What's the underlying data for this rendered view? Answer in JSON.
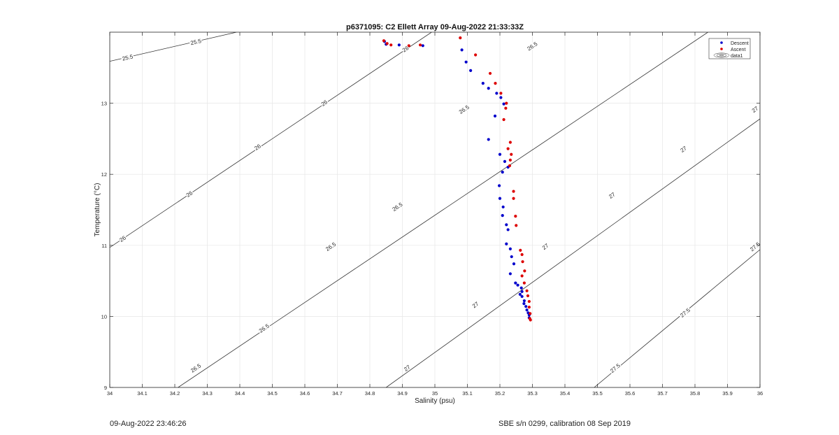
{
  "chart_data": {
    "type": "scatter",
    "title": "p6371095: C2 Ellett Array 09-Aug-2022 21:33:33Z",
    "xlabel": "Salinity (psu)",
    "ylabel": "Temperature (°C)",
    "xlim": [
      34,
      36
    ],
    "ylim": [
      9,
      14
    ],
    "xticks": [
      "34",
      "34.1",
      "34.2",
      "34.3",
      "34.4",
      "34.5",
      "34.6",
      "34.7",
      "34.8",
      "34.9",
      "35",
      "35.1",
      "35.2",
      "35.3",
      "35.4",
      "35.5",
      "35.6",
      "35.7",
      "35.8",
      "35.9",
      "36"
    ],
    "yticks": [
      "9",
      "10",
      "11",
      "12",
      "13"
    ],
    "grid": true,
    "legend_position": "top-right",
    "legend": [
      "Descent",
      "Ascent",
      "data1"
    ],
    "series": [
      {
        "name": "Descent",
        "color": "#0000cc",
        "points": [
          [
            34.845,
            13.87
          ],
          [
            34.85,
            13.83
          ],
          [
            34.89,
            13.82
          ],
          [
            34.963,
            13.81
          ],
          [
            35.083,
            13.75
          ],
          [
            35.096,
            13.58
          ],
          [
            35.11,
            13.46
          ],
          [
            35.148,
            13.28
          ],
          [
            35.165,
            13.21
          ],
          [
            35.19,
            13.14
          ],
          [
            35.203,
            13.08
          ],
          [
            35.212,
            12.99
          ],
          [
            35.185,
            12.82
          ],
          [
            35.165,
            12.49
          ],
          [
            35.2,
            12.28
          ],
          [
            35.215,
            12.18
          ],
          [
            35.225,
            12.1
          ],
          [
            35.208,
            12.03
          ],
          [
            35.198,
            11.84
          ],
          [
            35.2,
            11.66
          ],
          [
            35.21,
            11.54
          ],
          [
            35.208,
            11.42
          ],
          [
            35.22,
            11.29
          ],
          [
            35.225,
            11.22
          ],
          [
            35.22,
            11.02
          ],
          [
            35.232,
            10.95
          ],
          [
            35.236,
            10.84
          ],
          [
            35.243,
            10.74
          ],
          [
            35.232,
            10.6
          ],
          [
            35.248,
            10.47
          ],
          [
            35.255,
            10.44
          ],
          [
            35.266,
            10.4
          ],
          [
            35.268,
            10.35
          ],
          [
            35.262,
            10.31
          ],
          [
            35.268,
            10.28
          ],
          [
            35.275,
            10.22
          ],
          [
            35.274,
            10.18
          ],
          [
            35.28,
            10.14
          ],
          [
            35.283,
            10.09
          ],
          [
            35.287,
            10.05
          ],
          [
            35.29,
            10.02
          ],
          [
            35.29,
            9.98
          ]
        ]
      },
      {
        "name": "Ascent",
        "color": "#dd0000",
        "points": [
          [
            34.843,
            13.88
          ],
          [
            34.853,
            13.84
          ],
          [
            34.865,
            13.82
          ],
          [
            34.92,
            13.81
          ],
          [
            34.955,
            13.82
          ],
          [
            35.078,
            13.92
          ],
          [
            35.125,
            13.68
          ],
          [
            35.17,
            13.42
          ],
          [
            35.186,
            13.28
          ],
          [
            35.203,
            13.14
          ],
          [
            35.22,
            13.0
          ],
          [
            35.218,
            12.93
          ],
          [
            35.212,
            12.77
          ],
          [
            35.232,
            12.45
          ],
          [
            35.225,
            12.36
          ],
          [
            35.235,
            12.28
          ],
          [
            35.232,
            12.2
          ],
          [
            35.23,
            12.12
          ],
          [
            35.242,
            11.76
          ],
          [
            35.242,
            11.66
          ],
          [
            35.248,
            11.41
          ],
          [
            35.25,
            11.28
          ],
          [
            35.263,
            10.93
          ],
          [
            35.268,
            10.87
          ],
          [
            35.27,
            10.77
          ],
          [
            35.276,
            10.64
          ],
          [
            35.268,
            10.57
          ],
          [
            35.275,
            10.47
          ],
          [
            35.283,
            10.36
          ],
          [
            35.286,
            10.29
          ],
          [
            35.29,
            10.21
          ],
          [
            35.29,
            10.13
          ],
          [
            35.293,
            10.04
          ],
          [
            35.292,
            9.97
          ],
          [
            35.294,
            9.95
          ]
        ]
      }
    ],
    "isopycnals": [
      {
        "label": "25.5",
        "from": [
          34.0,
          13.59
        ],
        "to": [
          34.39,
          14.0
        ],
        "labels_at": [
          [
            34.055,
            13.64
          ],
          [
            34.265,
            13.86
          ]
        ]
      },
      {
        "label": "26",
        "from": [
          34.0,
          10.97
        ],
        "to": [
          34.99,
          14.0
        ],
        "labels_at": [
          [
            34.04,
            11.09
          ],
          [
            34.245,
            11.72
          ],
          [
            34.455,
            12.38
          ],
          [
            34.66,
            13.0
          ],
          [
            34.91,
            13.76
          ]
        ]
      },
      {
        "label": "26.5",
        "from": [
          34.21,
          9.0
        ],
        "to": [
          35.84,
          14.0
        ],
        "labels_at": [
          [
            34.265,
            9.27
          ],
          [
            34.475,
            9.83
          ],
          [
            34.68,
            10.98
          ],
          [
            34.885,
            11.54
          ],
          [
            35.09,
            12.91
          ],
          [
            35.3,
            13.8
          ]
        ]
      },
      {
        "label": "27",
        "from": [
          34.85,
          9.0
        ],
        "to": [
          36.0,
          12.78
        ],
        "labels_at": [
          [
            34.915,
            9.27
          ],
          [
            35.125,
            10.16
          ],
          [
            35.34,
            10.98
          ],
          [
            35.545,
            11.7
          ],
          [
            35.765,
            12.35
          ],
          [
            35.985,
            12.91
          ]
        ]
      },
      {
        "label": "27.5",
        "from": [
          35.49,
          9.0
        ],
        "to": [
          36.0,
          10.94
        ],
        "labels_at": [
          [
            35.555,
            9.27
          ],
          [
            35.77,
            10.05
          ],
          [
            35.985,
            10.98
          ]
        ]
      }
    ]
  },
  "footer": {
    "timestamp": "09-Aug-2022 23:46:26",
    "calibration": "SBE s/n 0299, calibration 08 Sep 2019"
  }
}
